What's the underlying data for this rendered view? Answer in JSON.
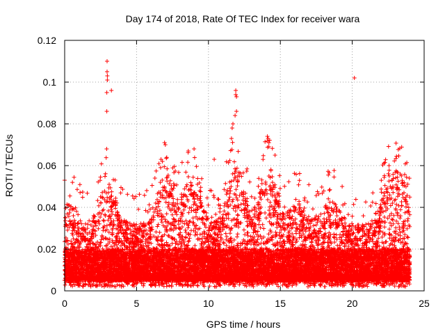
{
  "chart_data": {
    "type": "scatter",
    "title": "Day 174 of 2018, Rate Of TEC Index for receiver wara",
    "xlabel": "GPS time / hours",
    "ylabel": "ROTI / TECUs",
    "xlim": [
      0,
      25
    ],
    "ylim": [
      0,
      0.12
    ],
    "xticks": [
      0,
      5,
      10,
      15,
      20,
      25
    ],
    "xtick_labels": [
      "0",
      "5",
      "10",
      "15",
      "20",
      "25"
    ],
    "yticks": [
      0,
      0.02,
      0.04,
      0.06,
      0.08,
      0.1,
      0.12
    ],
    "ytick_labels": [
      "0",
      "0.02",
      "0.04",
      "0.06",
      "0.08",
      "0.1",
      "0.12"
    ],
    "grid": true,
    "marker": "+",
    "marker_color": "#ff0000",
    "series": [
      {
        "name": "ROTI",
        "x": [
          2.95,
          2.95,
          2.97,
          2.97,
          2.93,
          2.93,
          2.92,
          3.25,
          20.15,
          11.9,
          11.9,
          11.95,
          11.95,
          11.85,
          11.7,
          11.65,
          11.6,
          14.1,
          14.15,
          14.2,
          14.2,
          6.95,
          7.0,
          8.6,
          9.0,
          6.7,
          6.8,
          10.4,
          0.0,
          19.3,
          23.5,
          23.6
        ],
        "y": [
          0.11,
          0.105,
          0.103,
          0.101,
          0.095,
          0.086,
          0.068,
          0.096,
          0.102,
          0.096,
          0.094,
          0.093,
          0.086,
          0.084,
          0.08,
          0.078,
          0.073,
          0.074,
          0.073,
          0.071,
          0.069,
          0.071,
          0.07,
          0.067,
          0.068,
          0.063,
          0.062,
          0.063,
          0.053,
          0.05,
          0.052,
          0.047
        ],
        "description": "dense cloud of ~0.005-0.03 values across 0-24 h"
      }
    ]
  }
}
